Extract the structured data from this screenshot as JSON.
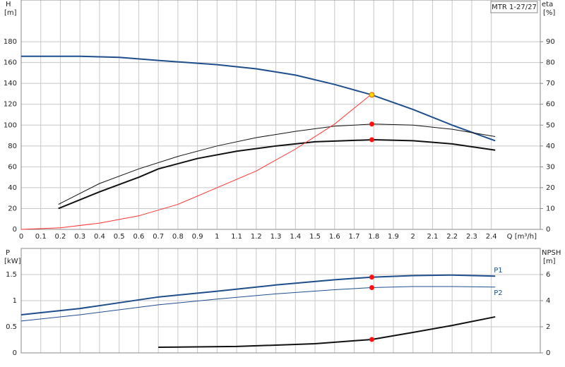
{
  "chart_data": [
    {
      "type": "line",
      "title": "MTR 1-27/27",
      "y_label": "H",
      "y_unit": "[m]",
      "y2_label": "eta",
      "y2_unit": "[%]",
      "x_label": "Q [m³/h]",
      "xlim": [
        0,
        2.65
      ],
      "xticks": [
        0,
        0.1,
        0.2,
        0.3,
        0.4,
        0.5,
        0.6,
        0.7,
        0.8,
        0.9,
        1.0,
        1.1,
        1.2,
        1.3,
        1.4,
        1.5,
        1.6,
        1.7,
        1.8,
        1.9,
        2.0,
        2.1,
        2.2,
        2.3,
        2.4
      ],
      "ylim": [
        0,
        220
      ],
      "yticks": [
        0,
        20,
        40,
        60,
        80,
        100,
        120,
        140,
        160,
        180
      ],
      "y2lim": [
        0,
        110
      ],
      "y2ticks": [
        0,
        10,
        20,
        30,
        40,
        50,
        60,
        70,
        80,
        90
      ],
      "grid": true,
      "series": [
        {
          "color": "#1f4e8c",
          "line_width": 2,
          "x": [
            0,
            0.3,
            0.5,
            0.7,
            1.0,
            1.2,
            1.4,
            1.6,
            1.79,
            2.0,
            2.2,
            2.42
          ],
          "values": [
            166,
            166,
            165,
            162,
            158,
            154,
            148,
            139,
            129,
            115,
            100,
            85
          ]
        },
        {
          "color": "#111111",
          "line_width": 1,
          "axis": "y2",
          "x": [
            0.19,
            0.4,
            0.6,
            0.8,
            1.0,
            1.2,
            1.4,
            1.6,
            1.8,
            2.0,
            2.2,
            2.42
          ],
          "values": [
            12,
            22,
            29,
            35,
            40,
            44,
            47,
            49.5,
            50.5,
            50,
            48,
            44.5
          ]
        },
        {
          "color": "#111111",
          "line_width": 2,
          "axis": "y2",
          "x": [
            0.19,
            0.4,
            0.6,
            0.7,
            0.9,
            1.1,
            1.3,
            1.5,
            1.8,
            2.0,
            2.2,
            2.42
          ],
          "values": [
            10,
            18,
            25,
            29,
            34,
            37.5,
            40,
            42,
            43,
            42.5,
            41,
            38
          ]
        },
        {
          "color": "#ff3333",
          "line_width": 1,
          "x": [
            0,
            0.2,
            0.4,
            0.6,
            0.8,
            1.0,
            1.2,
            1.4,
            1.6,
            1.79
          ],
          "values": [
            0,
            1.5,
            6,
            13,
            24,
            40,
            56,
            77,
            101,
            130
          ]
        }
      ],
      "points": [
        {
          "color": "#ff1111",
          "axis": "y2",
          "x": 1.79,
          "value": 50.5
        },
        {
          "color": "#ff1111",
          "axis": "y2",
          "x": 1.79,
          "value": 43
        },
        {
          "color": "#ffd700",
          "x": 1.79,
          "value": 129
        }
      ]
    },
    {
      "type": "line",
      "y_label": "P",
      "y_unit": "[kW]",
      "y2_label": "NPSH",
      "y2_unit": "[m]",
      "xlim": [
        0,
        2.65
      ],
      "ylim": [
        0,
        2
      ],
      "yticks": [
        0,
        0.5,
        1.0,
        1.5
      ],
      "y2lim": [
        0,
        8
      ],
      "y2ticks": [
        0,
        2,
        4,
        6
      ],
      "grid": true,
      "series": [
        {
          "name": "P1",
          "color": "#1f4e8c",
          "line_width": 2,
          "x": [
            0,
            0.3,
            0.7,
            1.0,
            1.3,
            1.6,
            1.79,
            2.0,
            2.2,
            2.42
          ],
          "values": [
            0.73,
            0.85,
            1.07,
            1.18,
            1.3,
            1.4,
            1.45,
            1.48,
            1.49,
            1.47
          ]
        },
        {
          "name": "P2",
          "color": "#1f4e8c",
          "line_width": 1,
          "x": [
            0,
            0.3,
            0.7,
            1.0,
            1.3,
            1.6,
            1.79,
            2.0,
            2.2,
            2.42
          ],
          "values": [
            0.61,
            0.73,
            0.92,
            1.03,
            1.13,
            1.21,
            1.25,
            1.27,
            1.27,
            1.26
          ]
        },
        {
          "color": "#111111",
          "line_width": 2,
          "axis": "y2",
          "x": [
            0.7,
            1.1,
            1.5,
            1.79,
            2.0,
            2.2,
            2.42
          ],
          "values": [
            0.43,
            0.49,
            0.7,
            1.03,
            1.57,
            2.1,
            2.76
          ]
        }
      ],
      "points": [
        {
          "color": "#ff1111",
          "x": 1.79,
          "value": 1.45
        },
        {
          "color": "#ff1111",
          "x": 1.79,
          "value": 1.25
        },
        {
          "color": "#ff1111",
          "axis": "y2",
          "x": 1.79,
          "value": 1.03
        }
      ]
    }
  ]
}
